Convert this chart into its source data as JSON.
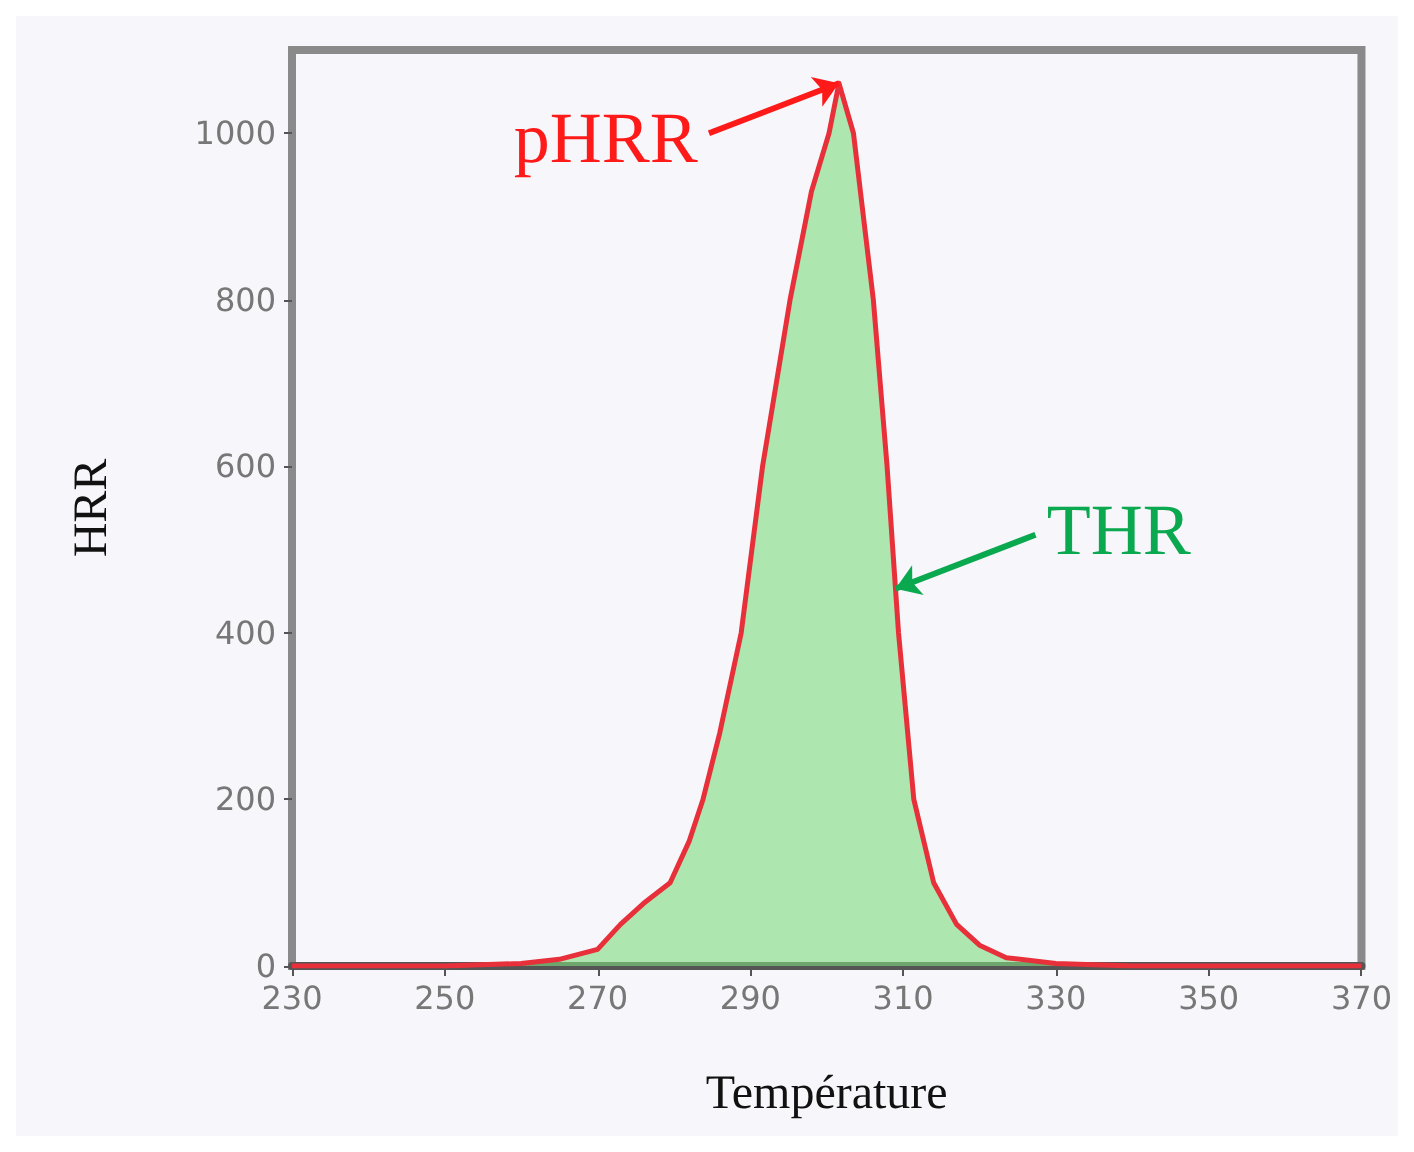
{
  "chart_data": {
    "type": "area",
    "xlabel": "Température",
    "ylabel": "HRR",
    "x": [
      230,
      250,
      260,
      265,
      270,
      273,
      276,
      279.5,
      282,
      283.8,
      286,
      288.8,
      291.6,
      295.2,
      298,
      300.3,
      301.6,
      303.5,
      306.1,
      307.9,
      309.4,
      311.4,
      314,
      317,
      320,
      323.5,
      330,
      340,
      370
    ],
    "series": [
      {
        "color": "#7fdc7f",
        "values": [
          0,
          0,
          3,
          8,
          20,
          50,
          75,
          100,
          150,
          200,
          280,
          400,
          600,
          800,
          930,
          1000,
          1060,
          1000,
          800,
          600,
          400,
          200,
          100,
          50,
          25,
          10,
          3,
          0,
          0
        ]
      }
    ],
    "xlim": [
      230,
      370
    ],
    "xticks": [
      230,
      250,
      270,
      290,
      310,
      330,
      350,
      370
    ],
    "ylim": [
      0,
      1100
    ],
    "yticks": [
      0,
      200,
      400,
      600,
      800,
      1000
    ],
    "grid": false,
    "marker": "none",
    "annotations": [
      {
        "text": "pHRR",
        "x": 301.6,
        "y": 1060
      },
      {
        "text": "THR",
        "x": 309,
        "y": 453
      }
    ]
  }
}
